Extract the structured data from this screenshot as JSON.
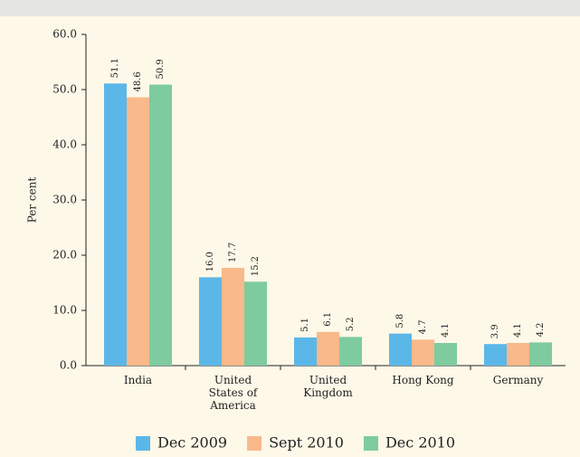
{
  "chart_data": {
    "type": "bar",
    "y_label": "Per cent",
    "categories": [
      "India",
      "United States of America",
      "United Kingdom",
      "Hong Kong",
      "Germany"
    ],
    "series": [
      {
        "name": "Dec 2009",
        "color": "#5bb7e8",
        "values": [
          51.1,
          16.0,
          5.1,
          5.8,
          3.9
        ],
        "value_labels": [
          "51.1",
          "16.0",
          "5.1",
          "5.8",
          "3.9"
        ]
      },
      {
        "name": "Sept 2010",
        "color": "#f9b98a",
        "values": [
          48.6,
          17.7,
          6.1,
          4.7,
          4.1
        ],
        "value_labels": [
          "48.6",
          "17.7",
          "6.1",
          "4.7",
          "4.1"
        ]
      },
      {
        "name": "Dec 2010",
        "color": "#7ecba0",
        "values": [
          50.9,
          15.2,
          5.2,
          4.1,
          4.2
        ],
        "value_labels": [
          "50.9",
          "15.2",
          "5.2",
          "4.1",
          "4.2"
        ]
      }
    ],
    "ylim": [
      0,
      60
    ],
    "yticks": [
      {
        "value": 0,
        "label": "0.0"
      },
      {
        "value": 10,
        "label": "10.0"
      },
      {
        "value": 20,
        "label": "20.0"
      },
      {
        "value": 30,
        "label": "30.0"
      },
      {
        "value": 40,
        "label": "40.0"
      },
      {
        "value": 50,
        "label": "50.0"
      },
      {
        "value": 60,
        "label": "60.0"
      }
    ],
    "legend": "bottom"
  }
}
